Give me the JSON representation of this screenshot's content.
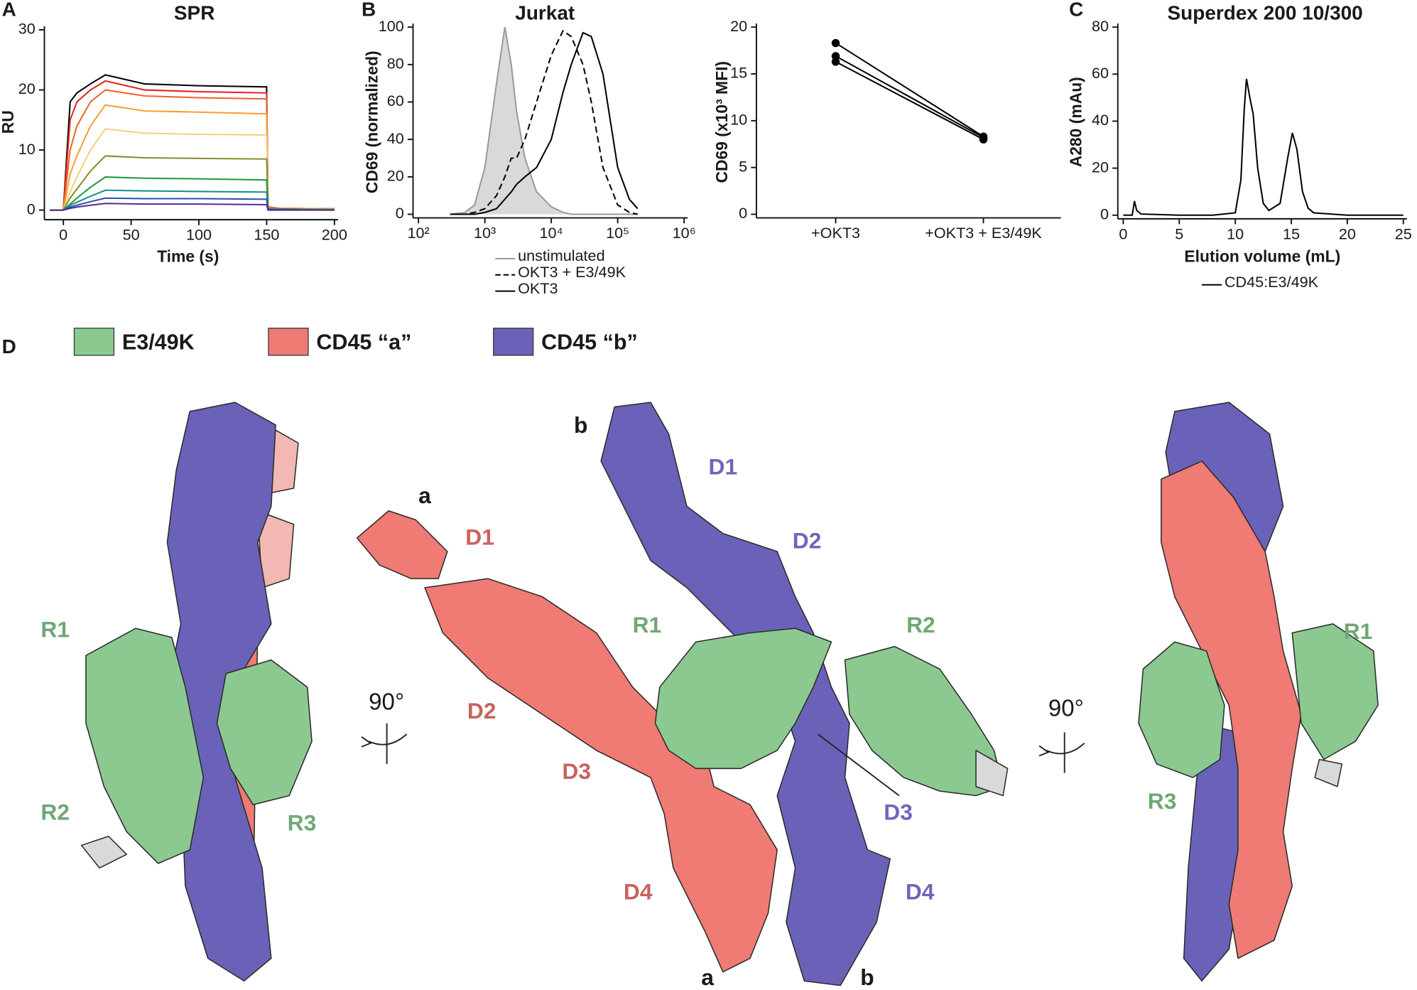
{
  "chart_data": [
    {
      "type": "line",
      "panel": "A",
      "title": "SPR",
      "ylabel": "RU",
      "xlabel": "Time (s)",
      "x": [
        -10,
        0,
        5,
        10,
        20,
        31,
        60,
        100,
        150,
        151,
        160,
        200
      ],
      "series": [
        {
          "color": "#000000",
          "values": [
            0,
            0,
            18,
            19.5,
            21,
            22.5,
            21,
            20.7,
            20.5,
            0.5,
            0.3,
            0.2
          ]
        },
        {
          "color": "#e0261f",
          "values": [
            0,
            0,
            15,
            18,
            20,
            21.5,
            20,
            19.7,
            19.5,
            0.5,
            0.3,
            0.2
          ]
        },
        {
          "color": "#f0632a",
          "values": [
            0,
            0,
            10,
            14,
            18,
            20,
            19,
            18.7,
            18.5,
            0.4,
            0.3,
            0.2
          ]
        },
        {
          "color": "#f5a033",
          "values": [
            0,
            0,
            6,
            9,
            14,
            17.5,
            16.5,
            16.3,
            16,
            0.4,
            0.3,
            0.2
          ]
        },
        {
          "color": "#f3d27a",
          "values": [
            0,
            0,
            3,
            5.5,
            10,
            13.5,
            12.8,
            12.6,
            12.5,
            0.3,
            0.2,
            0.1
          ]
        },
        {
          "color": "#8c8a2c",
          "values": [
            0,
            0,
            2,
            3.5,
            6.5,
            9,
            8.7,
            8.6,
            8.5,
            0.3,
            0.2,
            0.1
          ]
        },
        {
          "color": "#1e9a3c",
          "values": [
            0,
            0,
            1,
            2,
            3.8,
            5.5,
            5.3,
            5.2,
            5,
            0.2,
            0.1,
            0.1
          ]
        },
        {
          "color": "#178f8c",
          "values": [
            0,
            0,
            0.8,
            1.3,
            2.3,
            3.3,
            3.2,
            3.1,
            3,
            0.2,
            0.1,
            0
          ]
        },
        {
          "color": "#2450b4",
          "values": [
            0,
            0,
            0.5,
            0.8,
            1.4,
            2,
            1.9,
            1.9,
            1.8,
            0.1,
            0.1,
            0
          ]
        },
        {
          "color": "#5b2a8c",
          "values": [
            0,
            0,
            0.3,
            0.5,
            0.8,
            1.1,
            1,
            1,
            0.9,
            0,
            0,
            0
          ]
        }
      ],
      "xlim": [
        -10,
        200
      ],
      "xticks": [
        0,
        50,
        100,
        150,
        200
      ],
      "ylim": [
        -1,
        30
      ],
      "yticks": [
        0,
        10,
        20,
        30
      ]
    },
    {
      "type": "line",
      "panel": "B",
      "title": "Jurkat",
      "ylabel": "CD69 (normalized)",
      "xscale": "log",
      "x": [
        300,
        500,
        700,
        1000,
        1500,
        2000,
        2500,
        3000,
        4000,
        6000,
        10000,
        15000,
        20000,
        30000,
        40000,
        60000,
        100000,
        150000,
        200000
      ],
      "series": [
        {
          "name": "unstimulated",
          "color": "#9a9a9a",
          "fill": "#d9d9d9",
          "style": "solid",
          "values": [
            0,
            1,
            5,
            25,
            70,
            100,
            80,
            55,
            30,
            12,
            4,
            1,
            0,
            0,
            0,
            0,
            0,
            0,
            0
          ]
        },
        {
          "name": "OKT3 + E3/49K",
          "color": "#000000",
          "style": "dashed",
          "values": [
            0,
            0,
            1,
            3,
            10,
            20,
            30,
            30,
            40,
            60,
            85,
            98,
            95,
            80,
            60,
            25,
            5,
            1,
            0
          ]
        },
        {
          "name": "OKT3",
          "color": "#000000",
          "style": "solid",
          "values": [
            0,
            0,
            0,
            1,
            3,
            8,
            12,
            16,
            20,
            25,
            40,
            65,
            80,
            97,
            95,
            75,
            25,
            8,
            3
          ]
        }
      ],
      "xlim": [
        100,
        1000000
      ],
      "xticks": [
        {
          "value": 100,
          "label": "10²"
        },
        {
          "value": 1000,
          "label": "10³"
        },
        {
          "value": 10000,
          "label": "10⁴"
        },
        {
          "value": 100000,
          "label": "10⁵"
        },
        {
          "value": 1000000,
          "label": "10⁶"
        }
      ],
      "ylim": [
        0,
        100
      ],
      "yticks": [
        0,
        20,
        40,
        60,
        80,
        100
      ]
    },
    {
      "type": "line",
      "ylabel": "CD69 (x10³ MFI)",
      "markers": true,
      "categories": [
        "+OKT3",
        "+OKT3 + E3/49K"
      ],
      "series": [
        {
          "color": "#000000",
          "values": [
            18.3,
            8.3
          ]
        },
        {
          "color": "#000000",
          "values": [
            16.9,
            8.2
          ]
        },
        {
          "color": "#000000",
          "values": [
            16.3,
            8.0
          ]
        }
      ],
      "ylim": [
        0,
        20
      ],
      "yticks": [
        0,
        5,
        10,
        15,
        20
      ]
    },
    {
      "type": "line",
      "panel": "C",
      "title": "Superdex 200 10/300",
      "ylabel": "A280 (mAu)",
      "xlabel": "Elution volume (mL)",
      "x": [
        0,
        0.8,
        1,
        1.2,
        1.6,
        5,
        8,
        10,
        10.5,
        10.8,
        11,
        11.3,
        11.6,
        12,
        12.5,
        13,
        14,
        14.7,
        15.1,
        15.5,
        16,
        16.5,
        17,
        20,
        25
      ],
      "series": [
        {
          "name": "CD45:E3/49K",
          "color": "#000000",
          "style": "solid",
          "values": [
            0,
            0,
            6,
            2,
            0.5,
            0,
            0,
            1,
            15,
            45,
            58,
            50,
            43,
            20,
            5,
            2,
            5,
            25,
            35,
            28,
            10,
            3,
            1,
            0,
            0
          ]
        }
      ],
      "xlim": [
        0,
        25
      ],
      "xticks": [
        0,
        5,
        10,
        15,
        20,
        25
      ],
      "ylim": [
        0,
        80
      ],
      "yticks": [
        0,
        20,
        40,
        60,
        80
      ]
    }
  ],
  "panel_d": {
    "letter": "D",
    "legend": [
      {
        "label": "E3/49K",
        "color": "#8cc990"
      },
      {
        "label": "CD45 “a”",
        "color": "#ef7b74"
      },
      {
        "label": "CD45 “b”",
        "color": "#6a62b8"
      }
    ],
    "left_view": [
      "R1",
      "R2",
      "R3"
    ],
    "center_view": {
      "chain_top": [
        "a",
        "b"
      ],
      "chain_bottom": [
        "a",
        "b"
      ],
      "domains_a": [
        "D1",
        "D2",
        "D3",
        "D4"
      ],
      "domains_b": [
        "D1",
        "D2",
        "D3",
        "D4"
      ],
      "regions": [
        "R1",
        "R2"
      ]
    },
    "right_view": [
      "R1",
      "R3"
    ],
    "rotations": [
      "90°",
      "90°"
    ]
  }
}
